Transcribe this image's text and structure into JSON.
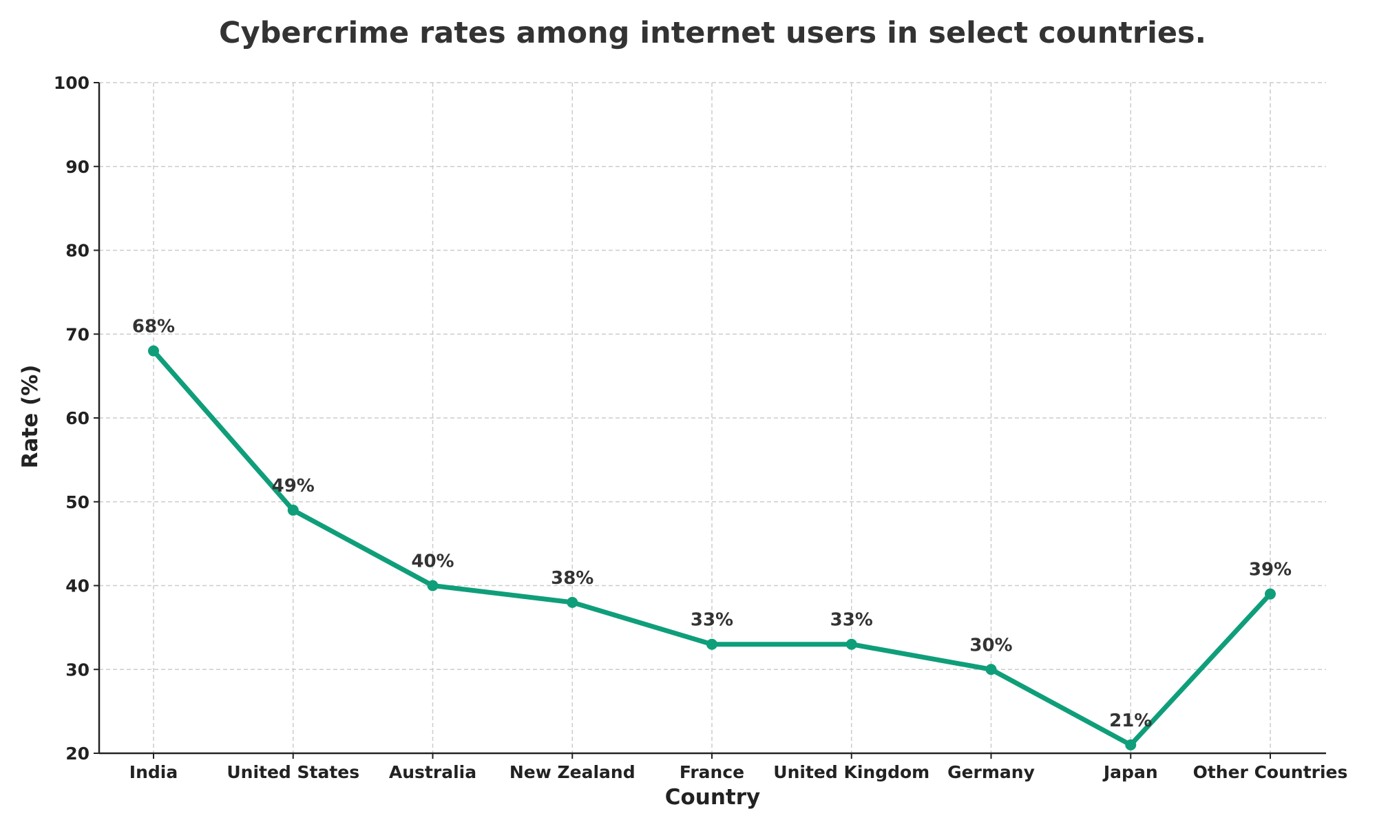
{
  "chart_data": {
    "type": "line",
    "title": "Cybercrime rates among internet users in select countries.",
    "xlabel": "Country",
    "ylabel": "Rate (%)",
    "categories": [
      "India",
      "United States",
      "Australia",
      "New Zealand",
      "France",
      "United Kingdom",
      "Germany",
      "Japan",
      "Other Countries"
    ],
    "values": [
      68,
      49,
      40,
      38,
      33,
      33,
      30,
      21,
      39
    ],
    "data_labels": [
      "68%",
      "49%",
      "40%",
      "38%",
      "33%",
      "33%",
      "30%",
      "21%",
      "39%"
    ],
    "ylim": [
      20,
      100
    ],
    "yticks": [
      20,
      30,
      40,
      50,
      60,
      70,
      80,
      90,
      100
    ],
    "grid": true,
    "colors": {
      "line": "#0f9e7a",
      "text": "#333333",
      "grid": "#cccccc"
    }
  }
}
